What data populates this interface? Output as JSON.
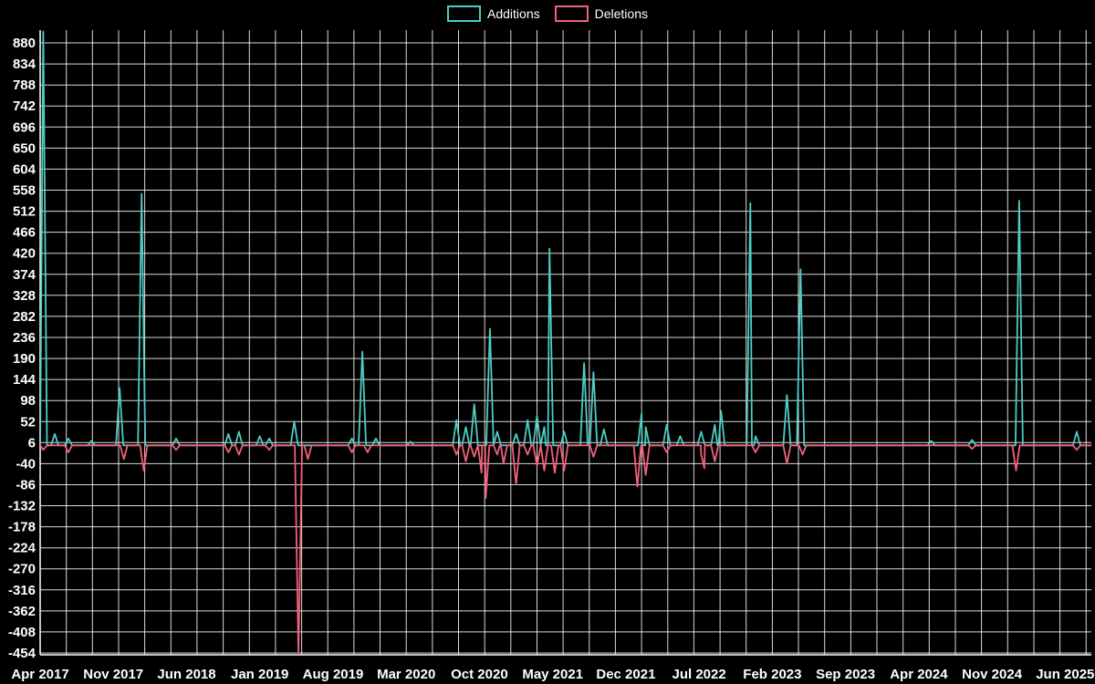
{
  "legend": [
    {
      "label": "Additions",
      "color": "#4ecdc4"
    },
    {
      "label": "Deletions",
      "color": "#f4607a"
    }
  ],
  "chart_data": {
    "type": "line",
    "title": "",
    "xlabel": "",
    "ylabel": "",
    "background": "#000000",
    "grid_color": "#ffffff",
    "axis_color": "#ffffff",
    "text_color": "#ffffff",
    "legend_position": "top-center",
    "grid": true,
    "xlim": [
      0,
      100.5
    ],
    "ylim": [
      -458,
      908
    ],
    "grid_x_step": 2.5,
    "spike_half_width": 0.35,
    "y_ticks": [
      880,
      834,
      788,
      742,
      696,
      650,
      604,
      558,
      512,
      466,
      420,
      374,
      328,
      282,
      236,
      190,
      144,
      98,
      52,
      6,
      -40,
      -86,
      -132,
      -178,
      -224,
      -270,
      -316,
      -362,
      -408,
      -454
    ],
    "x_ticks": [
      0,
      7,
      14,
      21,
      28,
      35,
      42,
      49,
      56,
      63,
      70,
      77,
      84,
      91,
      98
    ],
    "x_tick_labels": [
      "Apr 2017",
      "Nov 2017",
      "Jun 2018",
      "Jan 2019",
      "Aug 2019",
      "Mar 2020",
      "Oct 2020",
      "May 2021",
      "Dec 2021",
      "Jul 2022",
      "Feb 2023",
      "Sep 2023",
      "Apr 2024",
      "Nov 2024",
      "Jun 2025"
    ],
    "x_unit": "months since Apr 2017",
    "series": [
      {
        "name": "Additions",
        "color": "#4ecdc4",
        "baseline": 0,
        "points": [
          [
            0.3,
            905
          ],
          [
            1.4,
            25
          ],
          [
            2.7,
            15
          ],
          [
            4.9,
            10
          ],
          [
            7.6,
            125
          ],
          [
            9.7,
            550
          ],
          [
            13.0,
            15
          ],
          [
            18.0,
            25
          ],
          [
            19.0,
            30
          ],
          [
            21.0,
            20
          ],
          [
            21.9,
            15
          ],
          [
            24.3,
            52
          ],
          [
            29.8,
            15
          ],
          [
            30.8,
            205
          ],
          [
            32.1,
            15
          ],
          [
            35.4,
            8
          ],
          [
            39.8,
            55
          ],
          [
            40.7,
            40
          ],
          [
            41.5,
            90
          ],
          [
            43.0,
            255
          ],
          [
            43.7,
            30
          ],
          [
            45.5,
            25
          ],
          [
            46.6,
            55
          ],
          [
            47.5,
            65
          ],
          [
            48.2,
            40
          ],
          [
            48.7,
            430
          ],
          [
            50.1,
            30
          ],
          [
            52.0,
            180
          ],
          [
            52.9,
            160
          ],
          [
            53.9,
            35
          ],
          [
            57.5,
            70
          ],
          [
            57.9,
            40
          ],
          [
            59.9,
            45
          ],
          [
            61.2,
            20
          ],
          [
            63.2,
            30
          ],
          [
            64.5,
            45
          ],
          [
            65.1,
            75
          ],
          [
            67.9,
            530
          ],
          [
            68.4,
            20
          ],
          [
            71.4,
            110
          ],
          [
            72.7,
            385
          ],
          [
            85.2,
            10
          ],
          [
            89.1,
            12
          ],
          [
            93.6,
            535
          ],
          [
            99.1,
            30
          ]
        ]
      },
      {
        "name": "Deletions",
        "color": "#f4607a",
        "baseline": 0,
        "points": [
          [
            0.3,
            -10
          ],
          [
            2.7,
            -15
          ],
          [
            8.0,
            -30
          ],
          [
            9.9,
            -55
          ],
          [
            13.0,
            -10
          ],
          [
            18.0,
            -15
          ],
          [
            19.0,
            -20
          ],
          [
            21.9,
            -10
          ],
          [
            24.7,
            -454
          ],
          [
            25.6,
            -30
          ],
          [
            29.8,
            -15
          ],
          [
            31.3,
            -15
          ],
          [
            39.8,
            -20
          ],
          [
            40.7,
            -35
          ],
          [
            41.5,
            -25
          ],
          [
            42.2,
            -60
          ],
          [
            42.6,
            -115
          ],
          [
            43.7,
            -20
          ],
          [
            44.3,
            -40
          ],
          [
            45.5,
            -85
          ],
          [
            46.6,
            -20
          ],
          [
            47.5,
            -45
          ],
          [
            48.2,
            -55
          ],
          [
            49.2,
            -60
          ],
          [
            50.1,
            -55
          ],
          [
            52.9,
            -25
          ],
          [
            57.1,
            -90
          ],
          [
            57.9,
            -65
          ],
          [
            59.9,
            -15
          ],
          [
            63.2,
            -20
          ],
          [
            63.5,
            -50
          ],
          [
            64.5,
            -35
          ],
          [
            68.4,
            -15
          ],
          [
            71.4,
            -40
          ],
          [
            72.9,
            -20
          ],
          [
            89.1,
            -8
          ],
          [
            93.3,
            -55
          ],
          [
            99.1,
            -10
          ]
        ]
      }
    ]
  }
}
